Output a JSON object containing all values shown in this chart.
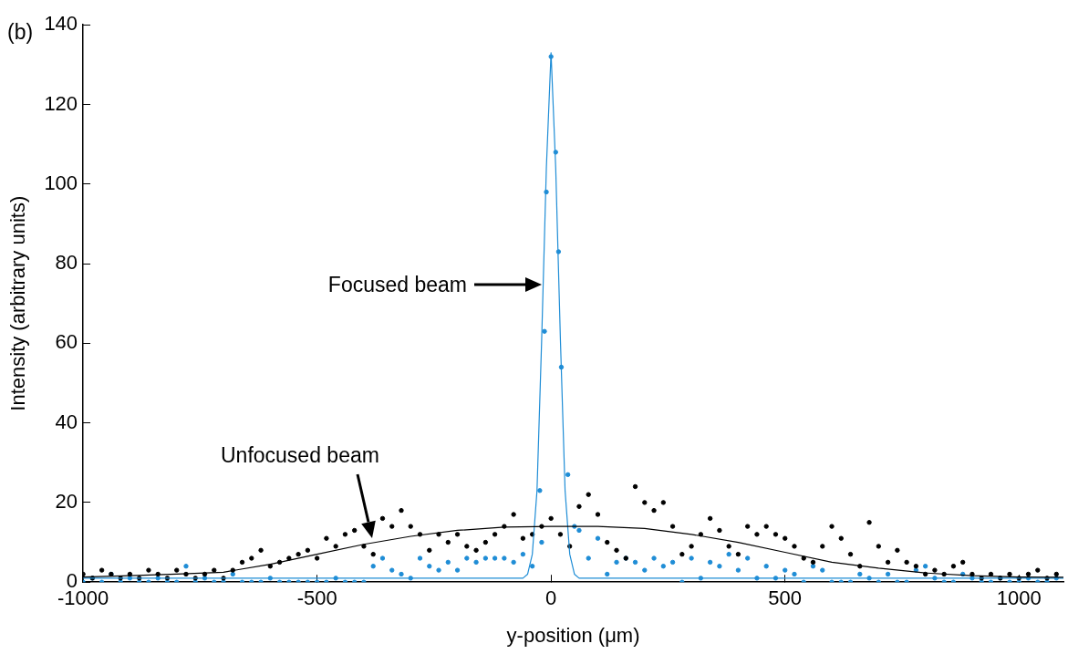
{
  "chart_data": {
    "type": "scatter",
    "xlabel": "y-position (μm)",
    "ylabel": "Intensity (arbitrary units)",
    "annotations": [
      "(b)",
      "Focused beam",
      "Unfocused beam"
    ],
    "xlim": [
      -1000,
      1095
    ],
    "xticks": [
      -1000,
      -500,
      0,
      500,
      1000
    ],
    "ylim": [
      0,
      140
    ],
    "yticks": [
      0,
      20,
      40,
      60,
      80,
      100,
      120,
      140
    ],
    "grid": false,
    "legend": false,
    "series": [
      {
        "type": "scatter",
        "marker": "circle",
        "color": "#000000",
        "x": [
          -1000,
          -980,
          -960,
          -940,
          -920,
          -900,
          -880,
          -860,
          -840,
          -820,
          -800,
          -780,
          -760,
          -740,
          -720,
          -700,
          -680,
          -660,
          -640,
          -620,
          -600,
          -580,
          -560,
          -540,
          -520,
          -500,
          -480,
          -460,
          -440,
          -420,
          -400,
          -380,
          -360,
          -340,
          -320,
          -300,
          -280,
          -260,
          -240,
          -220,
          -200,
          -180,
          -160,
          -140,
          -120,
          -100,
          -80,
          -60,
          -40,
          -20,
          0,
          20,
          40,
          60,
          80,
          100,
          120,
          140,
          160,
          180,
          200,
          220,
          240,
          260,
          280,
          300,
          320,
          340,
          360,
          380,
          400,
          420,
          440,
          460,
          480,
          500,
          520,
          540,
          560,
          580,
          600,
          620,
          640,
          660,
          680,
          700,
          720,
          740,
          760,
          780,
          800,
          820,
          840,
          860,
          880,
          900,
          920,
          940,
          960,
          980,
          1000,
          1020,
          1040,
          1060,
          1080
        ],
        "values": [
          2,
          1,
          3,
          2,
          1,
          2,
          1,
          3,
          2,
          1,
          3,
          2,
          1,
          2,
          3,
          1,
          3,
          5,
          6,
          8,
          4,
          5,
          6,
          7,
          8,
          6,
          11,
          9,
          12,
          13,
          9,
          7,
          16,
          14,
          18,
          14,
          12,
          8,
          12,
          10,
          12,
          9,
          8,
          10,
          12,
          14,
          17,
          11,
          12,
          14,
          16,
          12,
          9,
          19,
          22,
          17,
          10,
          8,
          6,
          24,
          20,
          18,
          20,
          14,
          7,
          9,
          12,
          16,
          13,
          9,
          7,
          14,
          12,
          14,
          12,
          11,
          9,
          6,
          5,
          9,
          14,
          11,
          7,
          4,
          15,
          9,
          5,
          8,
          5,
          4,
          2,
          3,
          2,
          4,
          5,
          2,
          1,
          2,
          1,
          2,
          1,
          2,
          3,
          1,
          2
        ]
      },
      {
        "type": "scatter",
        "marker": "circle",
        "color": "#1f8dd6",
        "x": [
          -1000,
          -980,
          -960,
          -940,
          -920,
          -900,
          -880,
          -860,
          -840,
          -820,
          -800,
          -780,
          -760,
          -740,
          -720,
          -700,
          -680,
          -660,
          -640,
          -620,
          -600,
          -580,
          -560,
          -540,
          -520,
          -500,
          -480,
          -460,
          -440,
          -420,
          -400,
          -380,
          -360,
          -340,
          -320,
          -300,
          -280,
          -260,
          -240,
          -220,
          -200,
          -180,
          -160,
          -140,
          -120,
          -100,
          -80,
          -60,
          -40,
          -24,
          -20,
          -14,
          -10,
          0,
          10,
          16,
          22,
          36,
          50,
          60,
          80,
          100,
          120,
          140,
          160,
          180,
          200,
          220,
          240,
          260,
          280,
          300,
          320,
          340,
          360,
          380,
          400,
          420,
          440,
          460,
          480,
          500,
          520,
          540,
          560,
          580,
          600,
          620,
          640,
          660,
          680,
          700,
          720,
          740,
          760,
          780,
          800,
          820,
          840,
          860,
          880,
          900,
          920,
          940,
          960,
          980,
          1000,
          1020,
          1040,
          1060,
          1080
        ],
        "values": [
          0,
          1,
          0,
          2,
          0,
          1,
          0,
          0,
          1,
          0,
          0,
          4,
          0,
          1,
          0,
          0,
          2,
          0,
          0,
          0,
          1,
          0,
          0,
          0,
          0,
          0,
          0,
          1,
          0,
          0,
          0,
          4,
          6,
          3,
          2,
          1,
          6,
          4,
          3,
          5,
          3,
          6,
          5,
          6,
          6,
          6,
          5,
          7,
          4,
          23,
          10,
          63,
          98,
          132,
          108,
          83,
          54,
          27,
          14,
          13,
          6,
          11,
          2,
          5,
          6,
          5,
          3,
          6,
          4,
          5,
          0,
          6,
          1,
          5,
          4,
          7,
          3,
          6,
          1,
          4,
          1,
          3,
          2,
          0,
          4,
          3,
          0,
          0,
          0,
          2,
          1,
          0,
          2,
          0,
          0,
          3,
          4,
          1,
          0,
          0,
          2,
          1,
          0,
          0,
          1,
          0,
          0,
          1,
          0,
          0,
          1
        ]
      },
      {
        "type": "line",
        "marker": "none",
        "line_style": "solid",
        "color": "#000000",
        "x": [
          -1000,
          -900,
          -800,
          -700,
          -600,
          -500,
          -400,
          -300,
          -200,
          -100,
          0,
          100,
          200,
          300,
          400,
          500,
          600,
          700,
          800,
          900,
          1000,
          1095
        ],
        "values": [
          1.3,
          1.6,
          2,
          2.5,
          4.5,
          7,
          9.5,
          11.5,
          13,
          13.8,
          14,
          14,
          13.5,
          12,
          10,
          7.5,
          5,
          3.5,
          2.3,
          1.6,
          1.3,
          1.2
        ]
      },
      {
        "type": "line",
        "marker": "none",
        "line_style": "solid",
        "color": "#1f8dd6",
        "x": [
          -1000,
          -60,
          -50,
          -40,
          -30,
          -20,
          -10,
          0,
          10,
          20,
          30,
          40,
          50,
          60,
          1095
        ],
        "values": [
          1,
          1,
          2,
          7,
          23,
          61,
          104,
          133,
          104,
          61,
          23,
          7,
          2,
          1,
          1
        ]
      }
    ]
  }
}
